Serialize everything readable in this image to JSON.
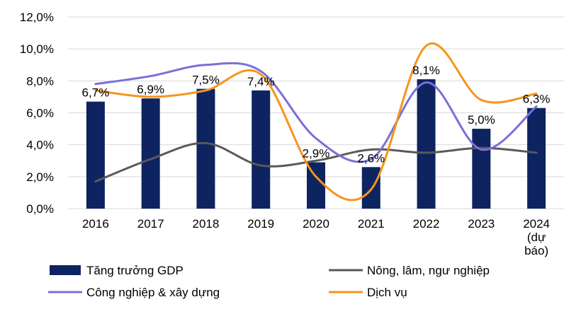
{
  "chart_data": {
    "type": "bar",
    "categories": [
      "2016",
      "2017",
      "2018",
      "2019",
      "2020",
      "2021",
      "2022",
      "2023",
      "2024\n(dự\nbáo)"
    ],
    "ylim": [
      0,
      12
    ],
    "y_ticks": [
      "0,0%",
      "2,0%",
      "4,0%",
      "6,0%",
      "8,0%",
      "10,0%",
      "12,0%"
    ],
    "grid": "horizontal",
    "legend_position": "bottom",
    "series": [
      {
        "name": "Tăng trưởng GDP",
        "kind": "bar",
        "color": "#0d2461",
        "values": [
          6.7,
          6.9,
          7.5,
          7.4,
          2.9,
          2.6,
          8.1,
          5.0,
          6.3
        ],
        "data_labels": [
          "6,7%",
          "6,9%",
          "7,5%",
          "7,4%",
          "2,9%",
          "2,6%",
          "8,1%",
          "5,0%",
          "6,3%"
        ]
      },
      {
        "name": "Nông, lâm, ngư nghiệp",
        "kind": "line",
        "color": "#595959",
        "values": [
          1.7,
          3.1,
          4.1,
          2.7,
          3.0,
          3.7,
          3.5,
          3.8,
          3.5
        ]
      },
      {
        "name": "Công nghiệp & xây dựng",
        "kind": "line",
        "color": "#7b6fd9",
        "values": [
          7.8,
          8.3,
          9.0,
          8.6,
          4.4,
          3.1,
          7.9,
          3.7,
          6.4
        ]
      },
      {
        "name": "Dịch vụ",
        "kind": "line",
        "color": "#f7941d",
        "values": [
          7.4,
          7.0,
          7.4,
          8.4,
          2.0,
          1.2,
          10.2,
          6.8,
          7.2
        ]
      }
    ]
  }
}
